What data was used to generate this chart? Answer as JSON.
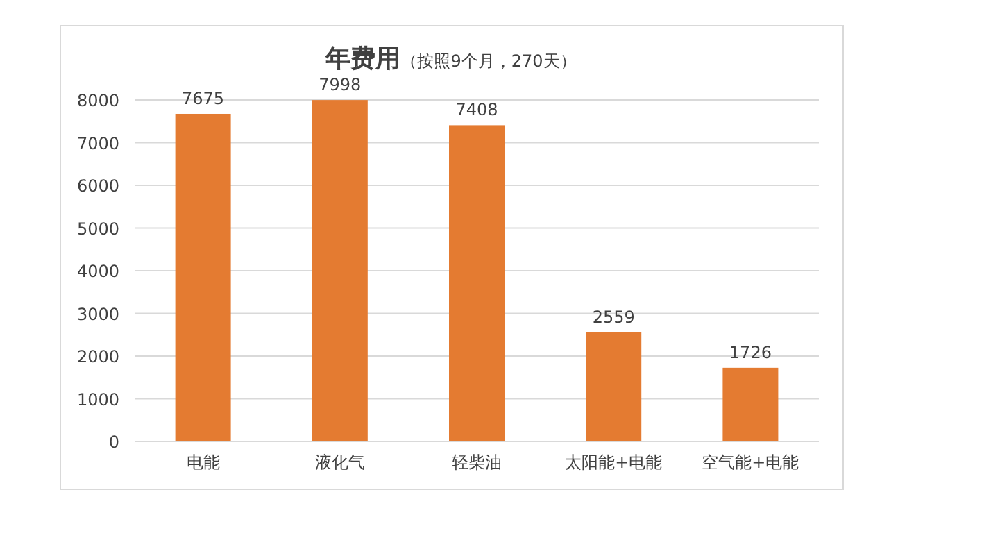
{
  "chart_data": {
    "type": "bar",
    "title": "年费用",
    "subtitle": "（按照9个月，270天）",
    "categories": [
      "电能",
      "液化气",
      "轻柴油",
      "太阳能+电能",
      "空气能+电能"
    ],
    "values": [
      7675,
      7998,
      7408,
      2559,
      1726
    ],
    "color": "#e47b31",
    "ylim": [
      0,
      8000
    ],
    "yticks": [
      0,
      1000,
      2000,
      3000,
      4000,
      5000,
      6000,
      7000,
      8000
    ],
    "grid": "y",
    "data_labels": true
  }
}
